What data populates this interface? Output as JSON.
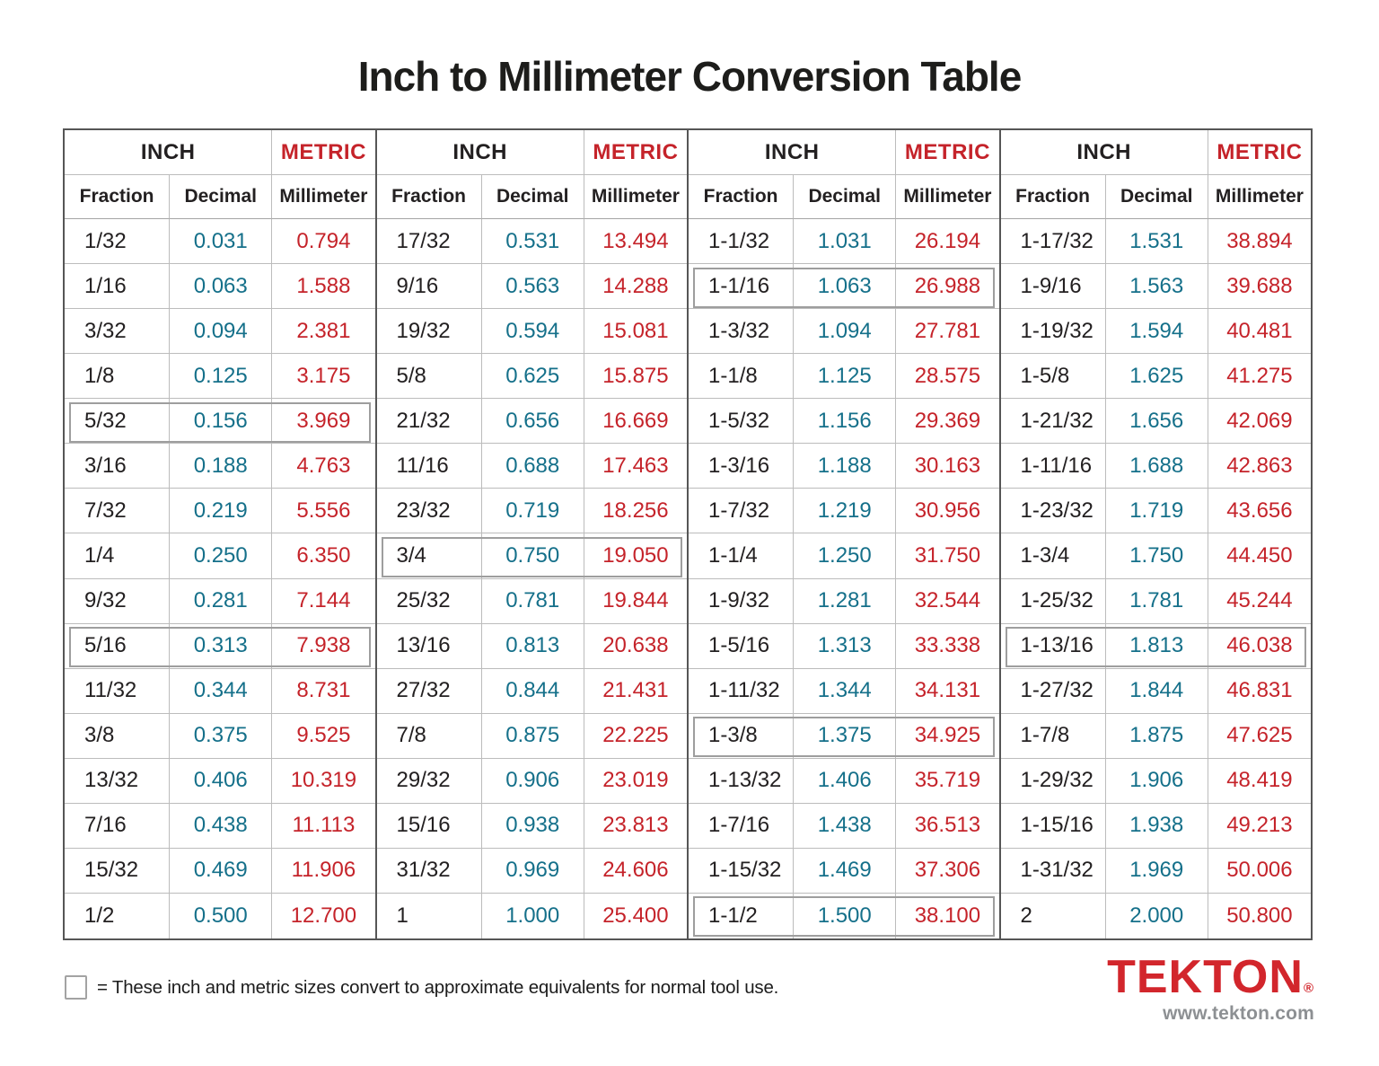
{
  "page": {
    "title": "Inch to Millimeter Conversion Table"
  },
  "colors": {
    "ink": "#232021",
    "decimal_teal": "#15708a",
    "metric_red": "#c5232a",
    "logo_red": "#d2262c",
    "url_gray": "#8d9093",
    "box_gray": "#9e9e9e"
  },
  "table": {
    "group_headers": {
      "inch": "INCH",
      "metric": "METRIC"
    },
    "col_headers": {
      "fraction": "Fraction",
      "decimal": "Decimal",
      "millimeter": "Millimeter"
    },
    "groups": [
      {
        "rows": [
          {
            "fraction": "1/32",
            "decimal": "0.031",
            "mm": "0.794",
            "bold": false,
            "boxed": false
          },
          {
            "fraction": "1/16",
            "decimal": "0.063",
            "mm": "1.588",
            "bold": true,
            "boxed": false
          },
          {
            "fraction": "3/32",
            "decimal": "0.094",
            "mm": "2.381",
            "bold": false,
            "boxed": false
          },
          {
            "fraction": "1/8",
            "decimal": "0.125",
            "mm": "3.175",
            "bold": true,
            "boxed": false
          },
          {
            "fraction": "5/32",
            "decimal": "0.156",
            "mm": "3.969",
            "bold": false,
            "boxed": true
          },
          {
            "fraction": "3/16",
            "decimal": "0.188",
            "mm": "4.763",
            "bold": true,
            "boxed": false
          },
          {
            "fraction": "7/32",
            "decimal": "0.219",
            "mm": "5.556",
            "bold": false,
            "boxed": false
          },
          {
            "fraction": "1/4",
            "decimal": "0.250",
            "mm": "6.350",
            "bold": true,
            "boxed": false
          },
          {
            "fraction": "9/32",
            "decimal": "0.281",
            "mm": "7.144",
            "bold": false,
            "boxed": false
          },
          {
            "fraction": "5/16",
            "decimal": "0.313",
            "mm": "7.938",
            "bold": true,
            "boxed": true
          },
          {
            "fraction": "11/32",
            "decimal": "0.344",
            "mm": "8.731",
            "bold": false,
            "boxed": false
          },
          {
            "fraction": "3/8",
            "decimal": "0.375",
            "mm": "9.525",
            "bold": true,
            "boxed": false
          },
          {
            "fraction": "13/32",
            "decimal": "0.406",
            "mm": "10.319",
            "bold": false,
            "boxed": false
          },
          {
            "fraction": "7/16",
            "decimal": "0.438",
            "mm": "11.113",
            "bold": true,
            "boxed": false
          },
          {
            "fraction": "15/32",
            "decimal": "0.469",
            "mm": "11.906",
            "bold": false,
            "boxed": false
          },
          {
            "fraction": "1/2",
            "decimal": "0.500",
            "mm": "12.700",
            "bold": true,
            "boxed": false
          }
        ]
      },
      {
        "rows": [
          {
            "fraction": "17/32",
            "decimal": "0.531",
            "mm": "13.494",
            "bold": false,
            "boxed": false
          },
          {
            "fraction": "9/16",
            "decimal": "0.563",
            "mm": "14.288",
            "bold": true,
            "boxed": false
          },
          {
            "fraction": "19/32",
            "decimal": "0.594",
            "mm": "15.081",
            "bold": false,
            "boxed": false
          },
          {
            "fraction": "5/8",
            "decimal": "0.625",
            "mm": "15.875",
            "bold": true,
            "boxed": false
          },
          {
            "fraction": "21/32",
            "decimal": "0.656",
            "mm": "16.669",
            "bold": false,
            "boxed": false
          },
          {
            "fraction": "11/16",
            "decimal": "0.688",
            "mm": "17.463",
            "bold": true,
            "boxed": false
          },
          {
            "fraction": "23/32",
            "decimal": "0.719",
            "mm": "18.256",
            "bold": false,
            "boxed": false
          },
          {
            "fraction": "3/4",
            "decimal": "0.750",
            "mm": "19.050",
            "bold": true,
            "boxed": true
          },
          {
            "fraction": "25/32",
            "decimal": "0.781",
            "mm": "19.844",
            "bold": false,
            "boxed": false
          },
          {
            "fraction": "13/16",
            "decimal": "0.813",
            "mm": "20.638",
            "bold": true,
            "boxed": false
          },
          {
            "fraction": "27/32",
            "decimal": "0.844",
            "mm": "21.431",
            "bold": false,
            "boxed": false
          },
          {
            "fraction": "7/8",
            "decimal": "0.875",
            "mm": "22.225",
            "bold": true,
            "boxed": false
          },
          {
            "fraction": "29/32",
            "decimal": "0.906",
            "mm": "23.019",
            "bold": false,
            "boxed": false
          },
          {
            "fraction": "15/16",
            "decimal": "0.938",
            "mm": "23.813",
            "bold": true,
            "boxed": false
          },
          {
            "fraction": "31/32",
            "decimal": "0.969",
            "mm": "24.606",
            "bold": false,
            "boxed": false
          },
          {
            "fraction": "1",
            "decimal": "1.000",
            "mm": "25.400",
            "bold": true,
            "boxed": false
          }
        ]
      },
      {
        "rows": [
          {
            "fraction": "1-1/32",
            "decimal": "1.031",
            "mm": "26.194",
            "bold": false,
            "boxed": false
          },
          {
            "fraction": "1-1/16",
            "decimal": "1.063",
            "mm": "26.988",
            "bold": true,
            "boxed": true
          },
          {
            "fraction": "1-3/32",
            "decimal": "1.094",
            "mm": "27.781",
            "bold": false,
            "boxed": false
          },
          {
            "fraction": "1-1/8",
            "decimal": "1.125",
            "mm": "28.575",
            "bold": true,
            "boxed": false
          },
          {
            "fraction": "1-5/32",
            "decimal": "1.156",
            "mm": "29.369",
            "bold": false,
            "boxed": false
          },
          {
            "fraction": "1-3/16",
            "decimal": "1.188",
            "mm": "30.163",
            "bold": true,
            "boxed": false
          },
          {
            "fraction": "1-7/32",
            "decimal": "1.219",
            "mm": "30.956",
            "bold": false,
            "boxed": false
          },
          {
            "fraction": "1-1/4",
            "decimal": "1.250",
            "mm": "31.750",
            "bold": true,
            "boxed": false
          },
          {
            "fraction": "1-9/32",
            "decimal": "1.281",
            "mm": "32.544",
            "bold": false,
            "boxed": false
          },
          {
            "fraction": "1-5/16",
            "decimal": "1.313",
            "mm": "33.338",
            "bold": true,
            "boxed": false
          },
          {
            "fraction": "1-11/32",
            "decimal": "1.344",
            "mm": "34.131",
            "bold": false,
            "boxed": false
          },
          {
            "fraction": "1-3/8",
            "decimal": "1.375",
            "mm": "34.925",
            "bold": true,
            "boxed": true
          },
          {
            "fraction": "1-13/32",
            "decimal": "1.406",
            "mm": "35.719",
            "bold": false,
            "boxed": false
          },
          {
            "fraction": "1-7/16",
            "decimal": "1.438",
            "mm": "36.513",
            "bold": true,
            "boxed": false
          },
          {
            "fraction": "1-15/32",
            "decimal": "1.469",
            "mm": "37.306",
            "bold": false,
            "boxed": false
          },
          {
            "fraction": "1-1/2",
            "decimal": "1.500",
            "mm": "38.100",
            "bold": true,
            "boxed": true
          }
        ]
      },
      {
        "rows": [
          {
            "fraction": "1-17/32",
            "decimal": "1.531",
            "mm": "38.894",
            "bold": false,
            "boxed": false
          },
          {
            "fraction": "1-9/16",
            "decimal": "1.563",
            "mm": "39.688",
            "bold": true,
            "boxed": false
          },
          {
            "fraction": "1-19/32",
            "decimal": "1.594",
            "mm": "40.481",
            "bold": false,
            "boxed": false
          },
          {
            "fraction": "1-5/8",
            "decimal": "1.625",
            "mm": "41.275",
            "bold": true,
            "boxed": false
          },
          {
            "fraction": "1-21/32",
            "decimal": "1.656",
            "mm": "42.069",
            "bold": false,
            "boxed": false
          },
          {
            "fraction": "1-11/16",
            "decimal": "1.688",
            "mm": "42.863",
            "bold": true,
            "boxed": false
          },
          {
            "fraction": "1-23/32",
            "decimal": "1.719",
            "mm": "43.656",
            "bold": false,
            "boxed": false
          },
          {
            "fraction": "1-3/4",
            "decimal": "1.750",
            "mm": "44.450",
            "bold": true,
            "boxed": false
          },
          {
            "fraction": "1-25/32",
            "decimal": "1.781",
            "mm": "45.244",
            "bold": false,
            "boxed": false
          },
          {
            "fraction": "1-13/16",
            "decimal": "1.813",
            "mm": "46.038",
            "bold": true,
            "boxed": true
          },
          {
            "fraction": "1-27/32",
            "decimal": "1.844",
            "mm": "46.831",
            "bold": false,
            "boxed": false
          },
          {
            "fraction": "1-7/8",
            "decimal": "1.875",
            "mm": "47.625",
            "bold": true,
            "boxed": false
          },
          {
            "fraction": "1-29/32",
            "decimal": "1.906",
            "mm": "48.419",
            "bold": false,
            "boxed": false
          },
          {
            "fraction": "1-15/16",
            "decimal": "1.938",
            "mm": "49.213",
            "bold": true,
            "boxed": false
          },
          {
            "fraction": "1-31/32",
            "decimal": "1.969",
            "mm": "50.006",
            "bold": false,
            "boxed": false
          },
          {
            "fraction": "2",
            "decimal": "2.000",
            "mm": "50.800",
            "bold": true,
            "boxed": false
          }
        ]
      }
    ]
  },
  "legend": {
    "text": "= These inch and metric sizes convert to approximate equivalents for normal tool use."
  },
  "branding": {
    "logo": "TEKTON",
    "registered": "®",
    "url": "www.tekton.com"
  }
}
